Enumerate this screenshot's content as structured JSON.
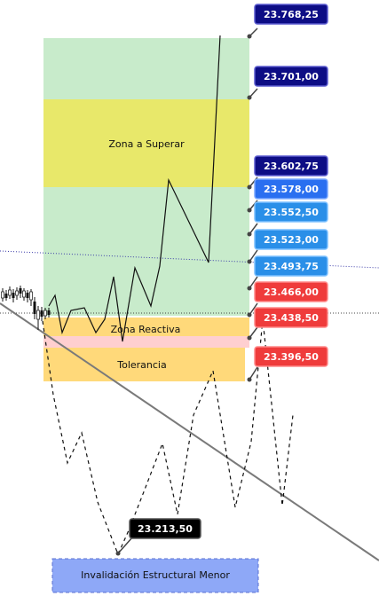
{
  "chart_data": {
    "type": "line",
    "title": "",
    "xlabel": "",
    "ylabel": "",
    "price_levels": [
      {
        "value": "23.768,25",
        "color": "#0d0d85"
      },
      {
        "value": "23.701,00",
        "color": "#0d0d85"
      },
      {
        "value": "23.602,75",
        "color": "#0d0d85"
      },
      {
        "value": "23.578,00",
        "color": "#2a6ff0"
      },
      {
        "value": "23.552,50",
        "color": "#2a8fe8"
      },
      {
        "value": "23.523,00",
        "color": "#2a8fe8"
      },
      {
        "value": "23.493,75",
        "color": "#2a8fe8"
      },
      {
        "value": "23.466,00",
        "color": "#ef3b3b"
      },
      {
        "value": "23.438,50",
        "color": "#ef3b3b"
      },
      {
        "value": "23.396,50",
        "color": "#ef3b3b"
      },
      {
        "value": "23.213,50",
        "color": "#000000"
      }
    ],
    "zones": [
      {
        "label": "Zona a Superar",
        "color": "#e8e86a"
      },
      {
        "label": "Zona Reactiva",
        "color": "#ffd97a"
      },
      {
        "label": "Tolerancia",
        "color": "#ffd97a"
      },
      {
        "label": "Invalidación Estructural Menor",
        "color": "#8ea8f7"
      }
    ],
    "projected_path": [
      [
        0,
        23440
      ],
      [
        3,
        23495
      ],
      [
        6,
        23420
      ],
      [
        9,
        23470
      ],
      [
        12,
        23405
      ],
      [
        15,
        23490
      ],
      [
        18,
        23410
      ],
      [
        21,
        23510
      ],
      [
        24,
        23445
      ],
      [
        27,
        23580
      ],
      [
        30,
        23510
      ],
      [
        33,
        23768.25
      ]
    ],
    "alt_path": [
      [
        0,
        23440
      ],
      [
        5,
        23260
      ],
      [
        8,
        23320
      ],
      [
        11,
        23213.5
      ],
      [
        14,
        23300
      ],
      [
        17,
        23230
      ],
      [
        20,
        23400
      ],
      [
        23,
        23240
      ],
      [
        26,
        23420
      ],
      [
        29,
        23250
      ]
    ],
    "colors": {
      "green_zone": "#c8ebcb",
      "tolerance_band": "#ffcfd0"
    }
  }
}
